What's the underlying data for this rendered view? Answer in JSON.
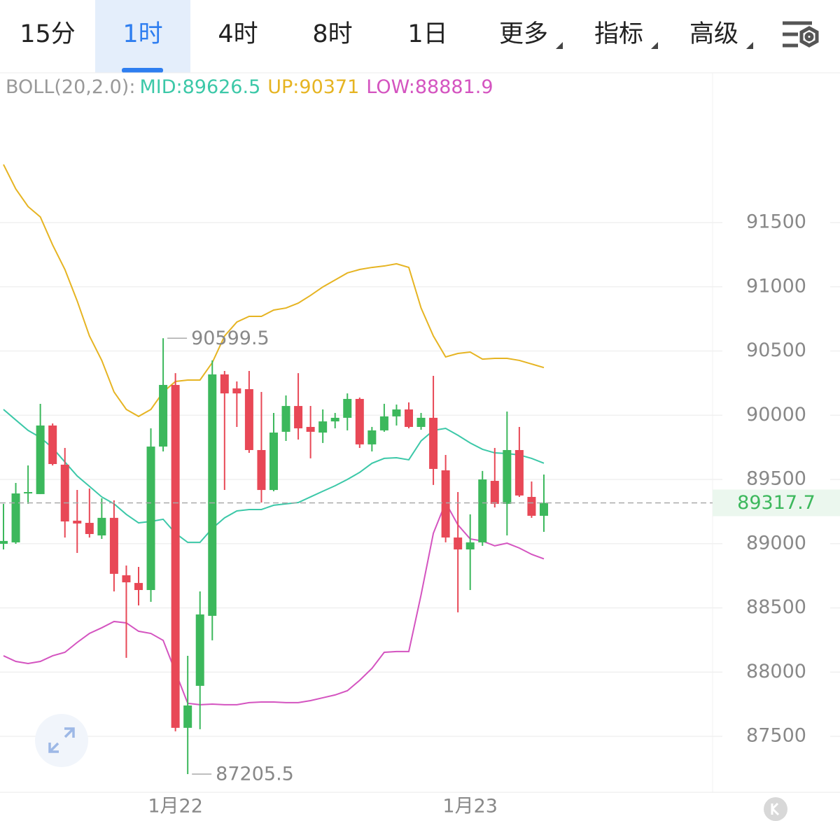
{
  "tabs": [
    "15分",
    "1时",
    "4时",
    "8时",
    "1日",
    "更多",
    "指标",
    "高级"
  ],
  "active_tab": 1,
  "chart_data": {
    "type": "candlestick",
    "title": "BOLL(20,2.0):",
    "up_color": "#3cb85c",
    "down_color": "#e84856",
    "categories": [
      null,
      null,
      null,
      null,
      null,
      null,
      null,
      null,
      null,
      null,
      null,
      null,
      null,
      null,
      "1月22",
      null,
      null,
      null,
      null,
      null,
      null,
      null,
      null,
      null,
      null,
      null,
      null,
      null,
      null,
      null,
      null,
      null,
      null,
      null,
      null,
      null,
      null,
      null,
      "1月23",
      null,
      null,
      null,
      null,
      null,
      null
    ],
    "open": [
      88999,
      89010,
      89391,
      89386,
      89920,
      89615,
      89179,
      89162,
      89064,
      89201,
      88754,
      88694,
      88639,
      89756,
      90236,
      87566,
      87893,
      88438,
      90318,
      90209,
      90203,
      89729,
      89418,
      89871,
      90072,
      89909,
      89865,
      89952,
      89980,
      90127,
      89773,
      89882,
      89991,
      90045,
      89909,
      89980,
      89571,
      89048,
      88955,
      89010,
      89489,
      89310,
      89729,
      89364,
      89217
    ],
    "high": [
      89310,
      89473,
      89609,
      90089,
      89936,
      89745,
      89418,
      89429,
      89353,
      89337,
      88830,
      88819,
      89898,
      90599.5,
      90328,
      88127,
      88628,
      90427,
      90345,
      90263,
      90345,
      90181,
      90018,
      90154,
      90328,
      90072,
      90045,
      90018,
      90170,
      90138,
      89909,
      90089,
      90083,
      90100,
      90018,
      90307,
      89691,
      89402,
      89228,
      89566,
      89745,
      90029,
      89909,
      89484,
      89538
    ],
    "low": [
      88955,
      88999,
      89310,
      89386,
      89609,
      89048,
      88928,
      89048,
      89037,
      88628,
      88111,
      88519,
      88547,
      89718,
      87539,
      87205.5,
      87555,
      88247,
      89418,
      89909,
      89707,
      89320,
      89408,
      89800,
      89811,
      89664,
      89784,
      89898,
      89882,
      89745,
      89718,
      89871,
      89920,
      89898,
      89887,
      89457,
      89010,
      88465,
      88639,
      88983,
      89282,
      89064,
      89364,
      89201,
      89092
    ],
    "close": [
      89021,
      89391,
      89402,
      89920,
      89620,
      89173,
      89157,
      89075,
      89201,
      88765,
      88699,
      88639,
      89756,
      90236,
      87566,
      87740,
      88449,
      90318,
      90170,
      90170,
      89729,
      89418,
      89865,
      90072,
      89898,
      89871,
      89952,
      89980,
      90127,
      89773,
      89882,
      89991,
      90045,
      89909,
      89980,
      89582,
      89048,
      88955,
      89010,
      89500,
      89310,
      89729,
      89375,
      89217,
      89317.7
    ],
    "series": [
      {
        "name": "MID:",
        "color": "#3cc8a8",
        "values": [
          90045,
          89963,
          89882,
          89827,
          89745,
          89636,
          89527,
          89446,
          89364,
          89310,
          89228,
          89162,
          89173,
          89190,
          89081,
          89010,
          89010,
          89119,
          89201,
          89255,
          89266,
          89266,
          89299,
          89310,
          89320,
          89364,
          89408,
          89451,
          89500,
          89555,
          89626,
          89664,
          89669,
          89653,
          89800,
          89882,
          89898,
          89844,
          89784,
          89735,
          89707,
          89702,
          89691,
          89664,
          89626.5
        ]
      },
      {
        "name": "UP:",
        "color": "#e6b422",
        "values": [
          91952,
          91762,
          91625,
          91544,
          91326,
          91135,
          90890,
          90617,
          90427,
          90181,
          90045,
          89991,
          90045,
          90181,
          90263,
          90274,
          90274,
          90410,
          90617,
          90726,
          90770,
          90770,
          90819,
          90835,
          90873,
          90933,
          90999,
          91053,
          91108,
          91135,
          91151,
          91162,
          91179,
          91151,
          90835,
          90617,
          90454,
          90481,
          90492,
          90437,
          90443,
          90443,
          90427,
          90399,
          90371.0
        ]
      },
      {
        "name": "LOW:",
        "color": "#d454c0",
        "values": [
          88127,
          88083,
          88067,
          88083,
          88127,
          88154,
          88231,
          88301,
          88345,
          88394,
          88383,
          88318,
          88301,
          88247,
          88002,
          87757,
          87746,
          87751,
          87746,
          87746,
          87762,
          87767,
          87767,
          87762,
          87762,
          87778,
          87800,
          87822,
          87855,
          87936,
          88029,
          88154,
          88160,
          88160,
          88601,
          89081,
          89320,
          89146,
          89037,
          89021,
          88983,
          89004,
          88966,
          88917,
          88881.9
        ]
      }
    ],
    "ylim": [
      87064,
      92661
    ],
    "yticks": [
      87500,
      88000,
      88500,
      89000,
      89500,
      90000,
      90500,
      91000,
      91500
    ],
    "grid": true
  }
}
